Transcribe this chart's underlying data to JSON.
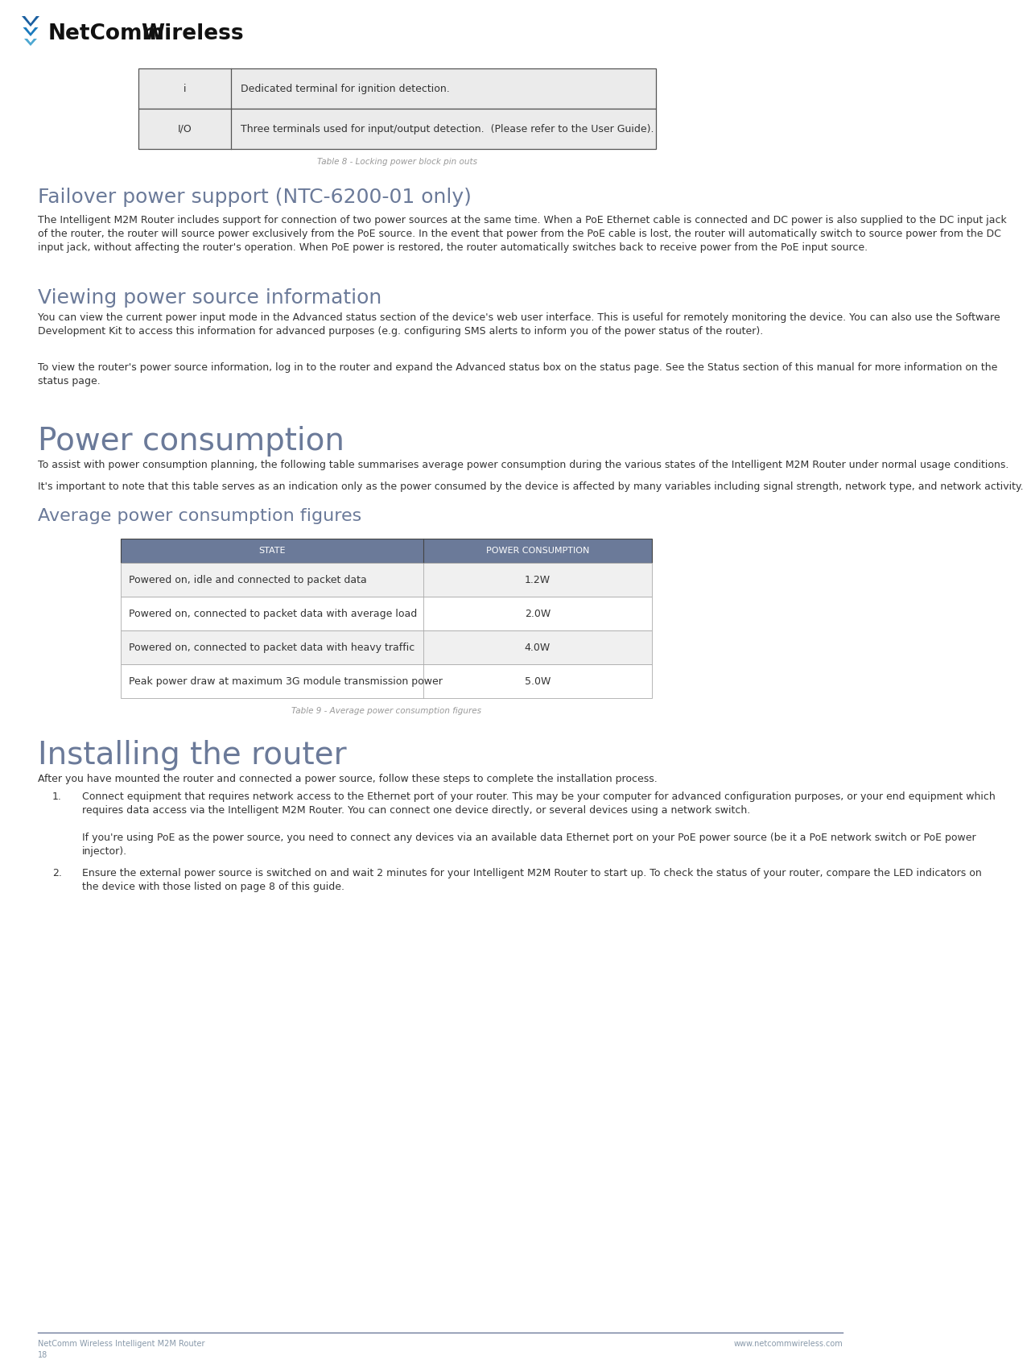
{
  "page_bg": "#ffffff",
  "footer_left": "NetComm Wireless Intelligent M2M Router",
  "footer_right": "www.netcommwireless.com",
  "footer_page": "18",
  "table1_caption": "Table 8 - Locking power block pin outs",
  "table1_rows": [
    [
      "i",
      "Dedicated terminal for ignition detection."
    ],
    [
      "I/O",
      "Three terminals used for input/output detection.  (Please refer to the User Guide)."
    ]
  ],
  "table1_bg": "#ebebeb",
  "table1_border": "#555555",
  "section1_title": "Failover power support (NTC-6200-01 only)",
  "section1_body_lines": [
    "The Intelligent M2M Router includes support for connection of two power sources at the same time. When a PoE Ethernet cable is connected and DC power is also supplied to the DC input jack",
    "of the router, the router will source power exclusively from the PoE source. In the event that power from the PoE cable is lost, the router will automatically switch to source power from the DC",
    "input jack, without affecting the router's operation. When PoE power is restored, the router automatically switches back to receive power from the PoE input source."
  ],
  "section2_title": "Viewing power source information",
  "section2_body1_lines": [
    "You can view the current power input mode in the Advanced status section of the device's web user interface. This is useful for remotely monitoring the device. You can also use the Software",
    "Development Kit to access this information for advanced purposes (e.g. configuring SMS alerts to inform you of the power status of the router)."
  ],
  "section2_body2_lines": [
    "To view the router's power source information, log in to the router and expand the Advanced status box on the status page. See the Status section of this manual for more information on the",
    "status page."
  ],
  "section3_title": "Power consumption",
  "section3_body1": "To assist with power consumption planning, the following table summarises average power consumption during the various states of the Intelligent M2M Router under normal usage conditions.",
  "section3_body2": "It's important to note that this table serves as an indication only as the power consumed by the device is affected by many variables including signal strength, network type, and network activity.",
  "section3_subtitle": "Average power consumption figures",
  "table2_caption": "Table 9 - Average power consumption figures",
  "table2_header": [
    "STATE",
    "POWER CONSUMPTION"
  ],
  "table2_header_bg": "#6b7a99",
  "table2_header_color": "#ffffff",
  "table2_rows": [
    [
      "Powered on, idle and connected to packet data",
      "1.2W"
    ],
    [
      "Powered on, connected to packet data with average load",
      "2.0W"
    ],
    [
      "Powered on, connected to packet data with heavy traffic",
      "4.0W"
    ],
    [
      "Peak power draw at maximum 3G module transmission power",
      "5.0W"
    ]
  ],
  "table2_border": "#aaaaaa",
  "section4_title": "Installing the router",
  "section4_intro": "After you have mounted the router and connected a power source, follow these steps to complete the installation process.",
  "section4_item1_lines": [
    "Connect equipment that requires network access to the Ethernet port of your router. This may be your computer for advanced configuration purposes, or your end equipment which",
    "requires data access via the Intelligent M2M Router. You can connect one device directly, or several devices using a network switch.",
    "",
    "If you're using PoE as the power source, you need to connect any devices via an available data Ethernet port on your PoE power source (be it a PoE network switch or PoE power",
    "injector)."
  ],
  "section4_item2_lines": [
    "Ensure the external power source is switched on and wait 2 minutes for your Intelligent M2M Router to start up. To check the status of your router, compare the LED indicators on",
    "the device with those listed on page 8 of this guide."
  ],
  "title_color": "#6b7a99",
  "text_color": "#333333",
  "caption_color": "#999999",
  "body_fs": 9.0,
  "title_fs": 18,
  "subtitle_fs": 14,
  "footer_color": "#8899aa",
  "footer_line_color": "#6b7a99"
}
